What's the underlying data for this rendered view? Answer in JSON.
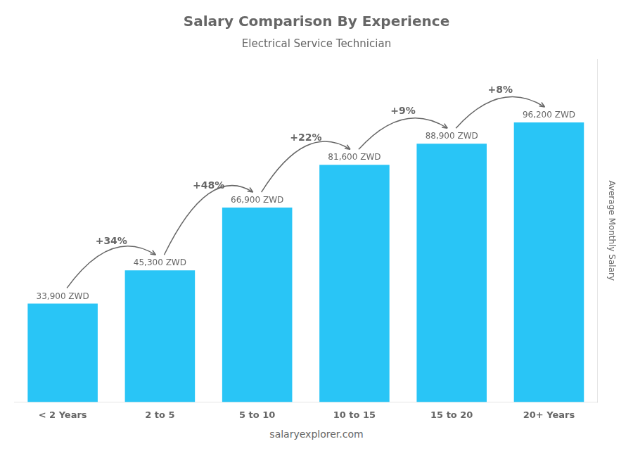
{
  "chart_data": {
    "type": "bar",
    "title": "Salary Comparison By Experience",
    "subtitle": "Electrical Service Technician",
    "categories": [
      "< 2 Years",
      "2 to 5",
      "5 to 10",
      "10 to 15",
      "15 to 20",
      "20+ Years"
    ],
    "values": [
      33900,
      45300,
      66900,
      81600,
      88900,
      96200
    ],
    "value_labels": [
      "33,900 ZWD",
      "45,300 ZWD",
      "66,900 ZWD",
      "81,600 ZWD",
      "88,900 ZWD",
      "96,200 ZWD"
    ],
    "data_labels": true,
    "color": "#29c5f6",
    "ylabel": "Average Monthly Salary",
    "ylim": [
      0,
      118000
    ],
    "tick_labels": "x",
    "grid": false,
    "annotations": [
      {
        "text": "+34%",
        "from": "< 2 Years",
        "to": "2 to 5"
      },
      {
        "text": "+48%",
        "from": "2 to 5",
        "to": "5 to 10"
      },
      {
        "text": "+22%",
        "from": "5 to 10",
        "to": "10 to 15"
      },
      {
        "text": "+9%",
        "from": "10 to 15",
        "to": "15 to 20"
      },
      {
        "text": "+8%",
        "from": "15 to 20",
        "to": "20+ Years"
      }
    ],
    "footer": "salaryexplorer.com"
  }
}
